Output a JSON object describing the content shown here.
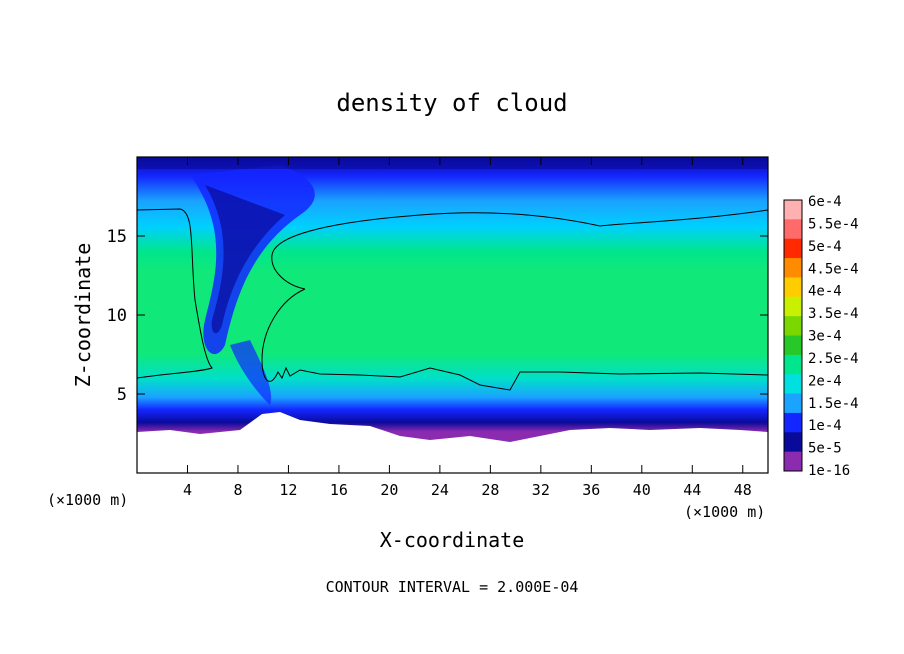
{
  "chart_data": {
    "type": "heatmap",
    "title": "density of cloud",
    "xlabel": "X-coordinate",
    "ylabel": "Z-coordinate",
    "x_unit_label": "(×1000 m)",
    "y_unit_label": "(×1000 m)",
    "x_unit_label_right": "(×1000 m)",
    "xlim": [
      0,
      50
    ],
    "ylim": [
      0,
      20
    ],
    "x_ticks": [
      "4",
      "8",
      "12",
      "16",
      "20",
      "24",
      "28",
      "32",
      "36",
      "40",
      "44",
      "48"
    ],
    "x_tick_values": [
      4,
      8,
      12,
      16,
      20,
      24,
      28,
      32,
      36,
      40,
      44,
      48
    ],
    "y_ticks": [
      "5",
      "10",
      "15"
    ],
    "y_tick_values": [
      5,
      10,
      15
    ],
    "footer": "CONTOUR INTERVAL = 2.000E-04",
    "colorbar": {
      "labels": [
        "6e-4",
        "5.5e-4",
        "5e-4",
        "4.5e-4",
        "4e-4",
        "3.5e-4",
        "3e-4",
        "2.5e-4",
        "2e-4",
        "1.5e-4",
        "1e-4",
        "5e-5",
        "1e-16"
      ],
      "colors": [
        "#ffb0b0",
        "#ff6a6a",
        "#ff2a00",
        "#ff8c00",
        "#ffcc00",
        "#c8f000",
        "#7ad800",
        "#28c828",
        "#00e68c",
        "#00e0e0",
        "#1aa3ff",
        "#1426ff",
        "#0a0a9a",
        "#8a2bb0"
      ]
    },
    "contour_level": "2e-4"
  }
}
